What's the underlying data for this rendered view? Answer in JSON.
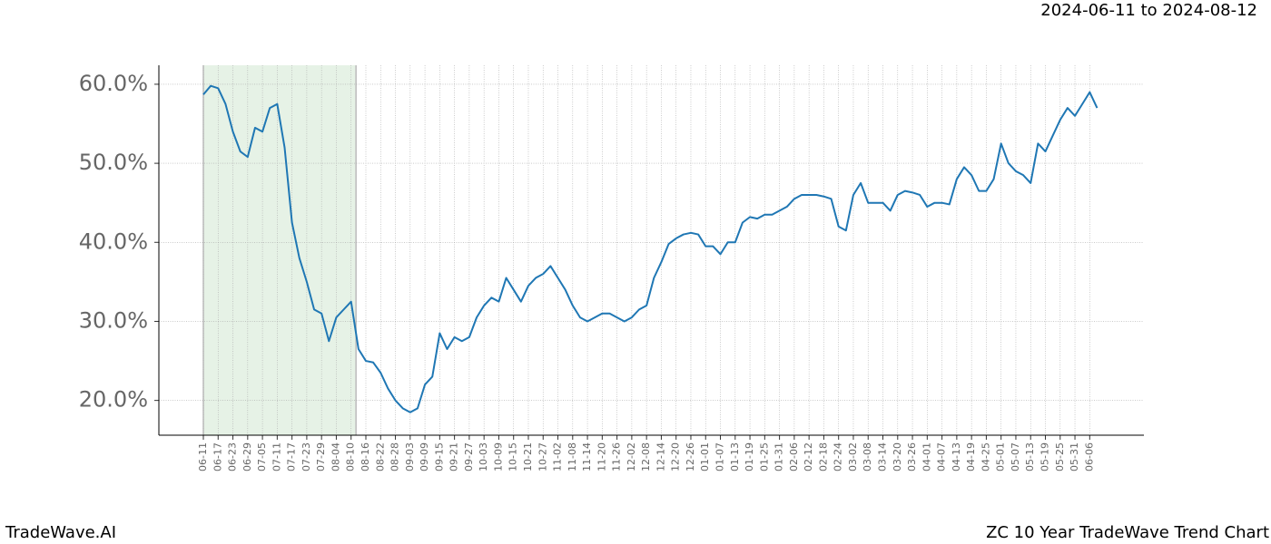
{
  "chart_data": {
    "type": "line",
    "title": "2024-06-11 to 2024-08-12",
    "footer_left": "TradeWave.AI",
    "footer_right": "ZC 10 Year TradeWave Trend Chart",
    "color": "#1f77b4",
    "highlight": {
      "from": "06-11",
      "to": "08-12",
      "color": "#e6f2e6"
    },
    "grid": true,
    "ylim": [
      15.6,
      62.4
    ],
    "yticks": [
      {
        "value": 20,
        "label": "20.0%"
      },
      {
        "value": 30,
        "label": "30.0%"
      },
      {
        "value": 40,
        "label": "40.0%"
      },
      {
        "value": 50,
        "label": "50.0%"
      },
      {
        "value": 60,
        "label": "60.0%"
      }
    ],
    "xticks": [
      "06-11",
      "06-17",
      "06-23",
      "06-29",
      "07-05",
      "07-11",
      "07-17",
      "07-23",
      "07-29",
      "08-04",
      "08-10",
      "08-16",
      "08-22",
      "08-28",
      "09-03",
      "09-09",
      "09-15",
      "09-21",
      "09-27",
      "10-03",
      "10-09",
      "10-15",
      "10-21",
      "10-27",
      "11-02",
      "11-08",
      "11-14",
      "11-20",
      "11-26",
      "12-02",
      "12-08",
      "12-14",
      "12-20",
      "12-26",
      "01-01",
      "01-07",
      "01-13",
      "01-19",
      "01-25",
      "01-31",
      "02-06",
      "02-12",
      "02-18",
      "02-24",
      "03-02",
      "03-08",
      "03-14",
      "03-20",
      "03-26",
      "04-01",
      "04-07",
      "04-13",
      "04-19",
      "04-25",
      "05-01",
      "05-07",
      "05-13",
      "05-19",
      "05-25",
      "05-31",
      "06-06"
    ],
    "x": [
      "06-11",
      "06-14",
      "06-17",
      "06-20",
      "06-23",
      "06-26",
      "06-29",
      "07-02",
      "07-05",
      "07-08",
      "07-11",
      "07-14",
      "07-17",
      "07-20",
      "07-23",
      "07-26",
      "07-29",
      "08-01",
      "08-04",
      "08-07",
      "08-10",
      "08-13",
      "08-16",
      "08-19",
      "08-22",
      "08-25",
      "08-28",
      "08-31",
      "09-03",
      "09-06",
      "09-09",
      "09-12",
      "09-15",
      "09-18",
      "09-21",
      "09-24",
      "09-27",
      "09-30",
      "10-03",
      "10-06",
      "10-09",
      "10-12",
      "10-15",
      "10-18",
      "10-21",
      "10-24",
      "10-27",
      "10-30",
      "11-02",
      "11-05",
      "11-08",
      "11-11",
      "11-14",
      "11-17",
      "11-20",
      "11-23",
      "11-26",
      "11-29",
      "12-02",
      "12-05",
      "12-08",
      "12-11",
      "12-14",
      "12-17",
      "12-20",
      "12-23",
      "12-26",
      "12-29",
      "01-01",
      "01-04",
      "01-07",
      "01-10",
      "01-13",
      "01-16",
      "01-19",
      "01-22",
      "01-25",
      "01-28",
      "01-31",
      "02-03",
      "02-06",
      "02-09",
      "02-12",
      "02-15",
      "02-18",
      "02-21",
      "02-24",
      "02-27",
      "03-02",
      "03-05",
      "03-08",
      "03-11",
      "03-14",
      "03-17",
      "03-20",
      "03-23",
      "03-26",
      "03-29",
      "04-01",
      "04-04",
      "04-07",
      "04-10",
      "04-13",
      "04-16",
      "04-19",
      "04-22",
      "04-25",
      "04-28",
      "05-01",
      "05-04",
      "05-07",
      "05-10",
      "05-13",
      "05-16",
      "05-19",
      "05-22",
      "05-25",
      "05-28",
      "05-31",
      "06-03",
      "06-06",
      "06-09"
    ],
    "values": [
      58.7,
      59.8,
      59.5,
      57.5,
      54,
      51.5,
      50.8,
      54.5,
      54,
      57,
      57.5,
      52,
      42.5,
      38,
      35,
      31.5,
      31,
      27.5,
      30.5,
      31.5,
      32.5,
      26.5,
      25,
      24.8,
      23.5,
      21.5,
      20,
      19,
      18.5,
      19,
      22,
      23,
      28.5,
      26.5,
      28,
      27.5,
      28,
      30.5,
      32,
      33,
      32.5,
      35.5,
      34,
      32.5,
      34.5,
      35.5,
      36,
      37,
      35.5,
      34,
      32,
      30.5,
      30,
      30.5,
      31,
      31,
      30.5,
      30,
      30.5,
      31.5,
      32,
      35.5,
      37.5,
      39.8,
      40.5,
      41,
      41.2,
      41,
      39.5,
      39.5,
      38.5,
      40,
      40,
      42.5,
      43.2,
      43,
      43.5,
      43.5,
      44,
      44.5,
      45.5,
      46,
      46,
      46,
      45.8,
      45.5,
      42,
      41.5,
      46,
      47.5,
      45,
      45,
      45,
      44,
      46,
      46.5,
      46.3,
      46,
      44.5,
      45,
      45,
      44.8,
      48,
      49.5,
      48.5,
      46.5,
      46.5,
      48,
      52.5,
      50,
      49,
      48.5,
      47.5,
      52.5,
      51.5,
      53.5,
      55.5,
      57,
      56,
      57.5,
      59,
      57
    ]
  }
}
